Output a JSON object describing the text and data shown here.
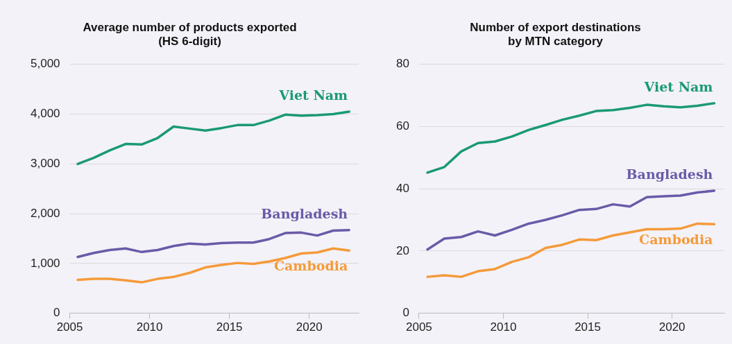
{
  "chart_data": [
    {
      "type": "line",
      "title": "Average number of products exported\n(HS 6-digit)",
      "x": [
        2005.5,
        2006.5,
        2007.5,
        2008.5,
        2009.5,
        2010.5,
        2011.5,
        2012.5,
        2013.5,
        2014.5,
        2015.5,
        2016.5,
        2017.5,
        2018.5,
        2019.5,
        2020.5,
        2021.5,
        2022.5
      ],
      "series": [
        {
          "name": "Viet Nam",
          "color": "#1a9a72",
          "values": [
            3000,
            3120,
            3270,
            3400,
            3390,
            3520,
            3750,
            3710,
            3670,
            3720,
            3780,
            3780,
            3870,
            3990,
            3970,
            3980,
            4000,
            4050
          ]
        },
        {
          "name": "Bangladesh",
          "color": "#6a5aa8",
          "values": [
            1130,
            1210,
            1270,
            1300,
            1230,
            1270,
            1350,
            1400,
            1380,
            1410,
            1420,
            1420,
            1490,
            1610,
            1620,
            1560,
            1660,
            1670
          ]
        },
        {
          "name": "Cambodia",
          "color": "#f59a3a",
          "values": [
            670,
            690,
            690,
            660,
            620,
            690,
            730,
            810,
            920,
            970,
            1010,
            990,
            1040,
            1110,
            1200,
            1220,
            1300,
            1260
          ]
        }
      ],
      "xlim": [
        2005,
        2023.1
      ],
      "xticks": [
        2005,
        2010,
        2015,
        2020
      ],
      "ylim": [
        0,
        5000
      ],
      "yticks": [
        0,
        {
          "value": 1000,
          "label": "1,000"
        },
        {
          "value": 2000,
          "label": "2,000"
        },
        {
          "value": 3000,
          "label": "3,000"
        },
        {
          "value": 4000,
          "label": "4,000"
        },
        {
          "value": 5000,
          "label": "5,000"
        }
      ],
      "grid": "y",
      "legend": false,
      "marker": "none",
      "line_style": "solid"
    },
    {
      "type": "line",
      "title": "Number of export destinations\nby MTN category",
      "x": [
        2005.5,
        2006.5,
        2007.5,
        2008.5,
        2009.5,
        2010.5,
        2011.5,
        2012.5,
        2013.5,
        2014.5,
        2015.5,
        2016.5,
        2017.5,
        2018.5,
        2019.5,
        2020.5,
        2021.5,
        2022.5
      ],
      "series": [
        {
          "name": "Viet Nam",
          "color": "#1a9a72",
          "values": [
            45.2,
            47,
            52,
            54.7,
            55.2,
            56.8,
            58.9,
            60.5,
            62.2,
            63.5,
            65,
            65.3,
            66,
            67,
            66.5,
            66.2,
            66.7,
            67.5
          ]
        },
        {
          "name": "Bangladesh",
          "color": "#6a5aa8",
          "values": [
            20.5,
            24,
            24.5,
            26.3,
            25,
            26.8,
            28.8,
            30,
            31.5,
            33.2,
            33.5,
            35,
            34.3,
            37.3,
            37.6,
            37.8,
            38.8,
            39.4
          ]
        },
        {
          "name": "Cambodia",
          "color": "#f59a3a",
          "values": [
            11.7,
            12.2,
            11.7,
            13.5,
            14.2,
            16.5,
            18,
            21,
            22,
            23.7,
            23.5,
            25,
            26,
            27,
            27,
            27.2,
            28.8,
            28.6
          ]
        }
      ],
      "xlim": [
        2005,
        2023.1
      ],
      "xticks": [
        2005,
        2010,
        2015,
        2020
      ],
      "ylim": [
        0,
        80
      ],
      "yticks": [
        0,
        20,
        40,
        60,
        80
      ],
      "grid": "y",
      "legend": false,
      "marker": "none",
      "line_style": "solid"
    }
  ]
}
